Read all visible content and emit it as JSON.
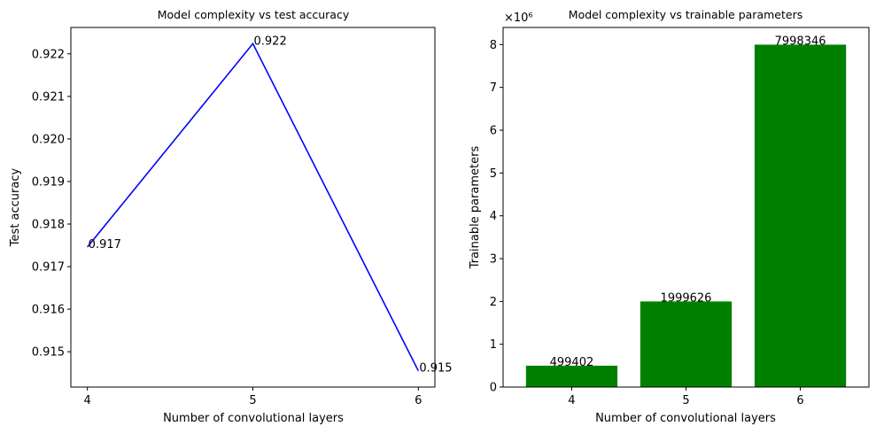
{
  "chart_data": [
    {
      "type": "line",
      "title": "Model complexity vs test accuracy",
      "xlabel": "Number of convolutional layers",
      "ylabel": "Test accuracy",
      "x": [
        4,
        5,
        6
      ],
      "series": [
        {
          "values": [
            0.91746,
            0.92224,
            0.91455
          ],
          "color": "#0000ff"
        }
      ],
      "data_labels": [
        "0.917",
        "0.922",
        "0.915"
      ],
      "xticks": [
        "4",
        "5",
        "6"
      ],
      "yticks": [
        "0.915",
        "0.916",
        "0.917",
        "0.918",
        "0.919",
        "0.920",
        "0.921",
        "0.922"
      ],
      "ytick_values": [
        0.915,
        0.916,
        0.917,
        0.918,
        0.919,
        0.92,
        0.921,
        0.922
      ],
      "xlim": [
        3.9,
        6.1
      ],
      "ylim": [
        0.91417,
        0.92262
      ],
      "grid": false
    },
    {
      "type": "bar",
      "title": "Model complexity vs trainable parameters",
      "xlabel": "Number of convolutional layers",
      "ylabel": "Trainable parameters",
      "categories": [
        "4",
        "5",
        "6"
      ],
      "series": [
        {
          "values": [
            499402,
            1999626,
            7998346
          ],
          "color": "#008000"
        }
      ],
      "data_labels": [
        "499402",
        "1999626",
        "7998346"
      ],
      "yticks": [
        "0",
        "1",
        "2",
        "3",
        "4",
        "5",
        "6",
        "7",
        "8"
      ],
      "ytick_values": [
        0,
        1000000,
        2000000,
        3000000,
        4000000,
        5000000,
        6000000,
        7000000,
        8000000
      ],
      "offset_text": "×10⁶",
      "ylim": [
        0,
        8400000
      ],
      "grid": false
    }
  ]
}
